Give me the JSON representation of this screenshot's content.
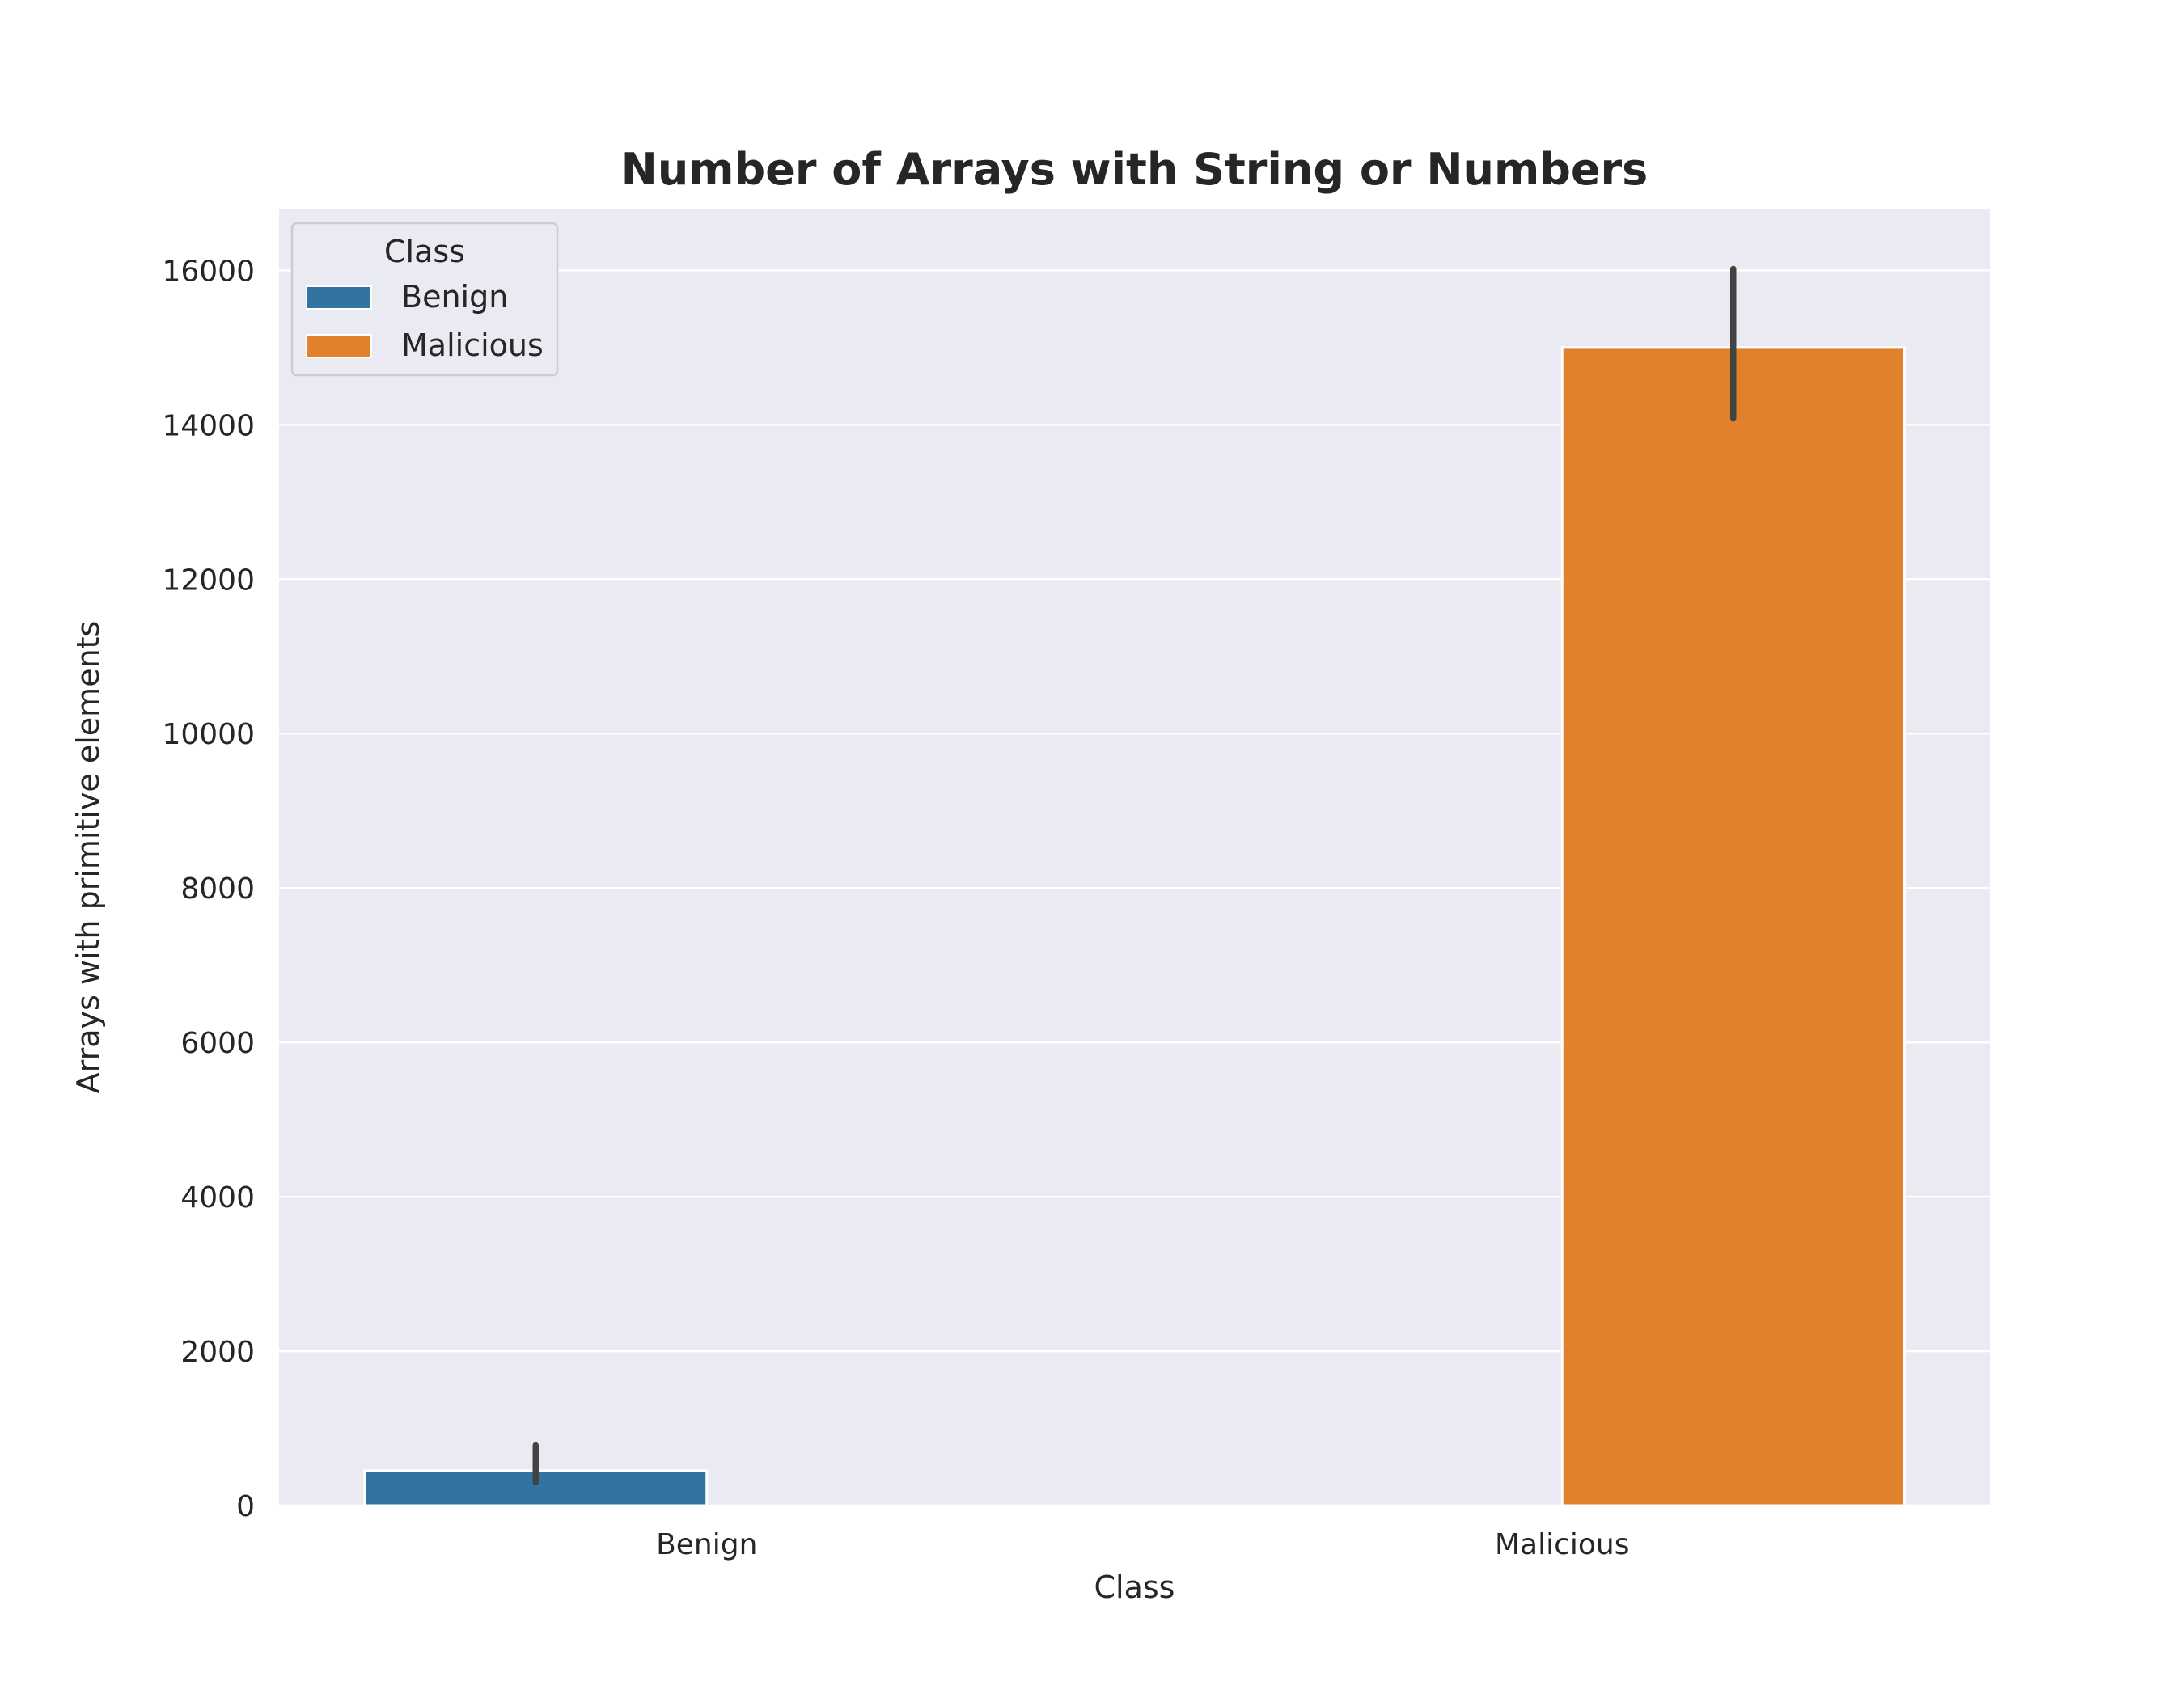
{
  "chart_data": {
    "type": "bar",
    "title": "Number of Arrays with String or Numbers",
    "xlabel": "Class",
    "ylabel": "Arrays with primitive elements",
    "categories": [
      "Benign",
      "Malicious"
    ],
    "hue_order": [
      "Benign",
      "Malicious"
    ],
    "series": [
      {
        "name": "Benign",
        "category": "Benign",
        "value": 450,
        "ci": [
          300,
          780
        ]
      },
      {
        "name": "Malicious",
        "category": "Malicious",
        "value": 15000,
        "ci": [
          14080,
          16020
        ]
      }
    ],
    "ylim": [
      0,
      16800
    ],
    "yticks": [
      0,
      2000,
      4000,
      6000,
      8000,
      10000,
      12000,
      14000,
      16000
    ],
    "ytick_labels": [
      "0",
      "2000",
      "4000",
      "6000",
      "8000",
      "10000",
      "12000",
      "14000",
      "16000"
    ],
    "grid": true,
    "legend": {
      "title": "Class",
      "placement": "top-left"
    },
    "colors": {
      "Benign": "#3274a1",
      "Malicious": "#e1812c",
      "plot_bg": "#eaeaf2",
      "grid": "#ffffff",
      "errorbar": "#424242"
    }
  }
}
